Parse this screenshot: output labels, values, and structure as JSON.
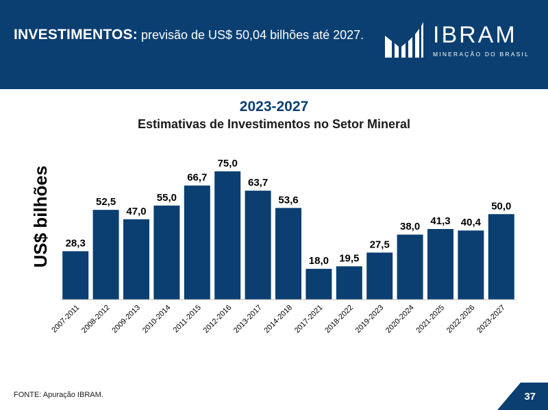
{
  "header": {
    "title_bold": "INVESTIMENTOS:",
    "title_rest": "previsão de US$ 50,04 bilhões até 2027.",
    "colors": {
      "background": "#0b3f72",
      "text": "#ffffff"
    }
  },
  "logo": {
    "name": "IBRAM",
    "subtitle": "MINERAÇÃO DO BRASIL"
  },
  "chart_data": {
    "type": "bar",
    "period": "2023-2027",
    "title": "Estimativas de Investimentos no Setor Mineral",
    "xlabel": "",
    "ylabel": "US$ bilhões",
    "ylim": [
      0,
      85
    ],
    "grid": false,
    "legend": "none",
    "bar_color": "#0b3f72",
    "categories": [
      "2007-2011",
      "2008-2012",
      "2009-2013",
      "2010-2014",
      "2011-2015",
      "2012-2016",
      "2013-2017",
      "2014-2018",
      "2017-2021",
      "2018-2022",
      "2019-2023",
      "2020-2024",
      "2021-2025",
      "2022-2026",
      "2023-2027"
    ],
    "values": [
      28.3,
      52.5,
      47.0,
      55.0,
      66.7,
      75.0,
      63.7,
      53.6,
      18.0,
      19.5,
      27.5,
      38.0,
      41.3,
      40.4,
      50.0
    ],
    "value_labels": [
      "28,3",
      "52,5",
      "47,0",
      "55,0",
      "66,7",
      "75,0",
      "63,7",
      "53,6",
      "18,0",
      "19,5",
      "27,5",
      "38,0",
      "41,3",
      "40,4",
      "50,0"
    ]
  },
  "footer": {
    "source": "FONTE: Apuração IBRAM.",
    "page_number": "37"
  }
}
